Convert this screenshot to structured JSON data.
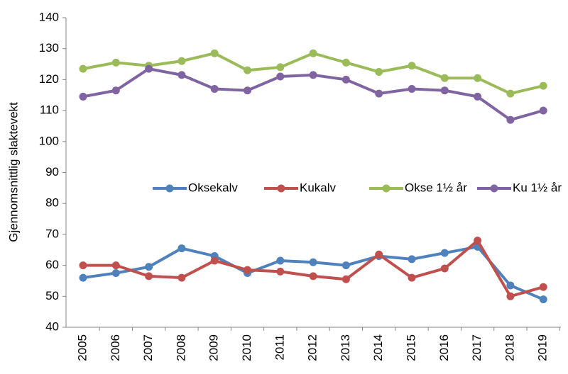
{
  "chart_data": {
    "type": "line",
    "y_label": "Gjennomsnittlig slaktevekt",
    "categories": [
      "2005",
      "2006",
      "2007",
      "2008",
      "2009",
      "2010",
      "2011",
      "2012",
      "2013",
      "2014",
      "2015",
      "2016",
      "2017",
      "2018",
      "2019"
    ],
    "series": [
      {
        "name": "Oksekalv",
        "color": "#4f81bd",
        "values": [
          56,
          57.5,
          59.5,
          65.5,
          63,
          57.5,
          61.5,
          61,
          60,
          63,
          62,
          64,
          66,
          53.5,
          49
        ]
      },
      {
        "name": "Kukalv",
        "color": "#c0504d",
        "values": [
          60,
          60,
          56.5,
          56,
          61.5,
          58.5,
          58,
          56.5,
          55.5,
          63.5,
          56,
          59,
          68,
          50,
          53
        ]
      },
      {
        "name": "Okse 1½ år",
        "color": "#9bbb59",
        "values": [
          123.5,
          125.5,
          124.5,
          126,
          128.5,
          123,
          124,
          128.5,
          125.5,
          122.5,
          124.5,
          120.5,
          120.5,
          115.5,
          118
        ]
      },
      {
        "name": "Ku 1½ år",
        "color": "#8064a2",
        "values": [
          114.5,
          116.5,
          123.5,
          121.5,
          117,
          116.5,
          121,
          121.5,
          120,
          115.5,
          117,
          116.5,
          114.5,
          107,
          110
        ]
      }
    ],
    "ylim": [
      40,
      140
    ],
    "yticks": [
      40,
      50,
      60,
      70,
      80,
      90,
      100,
      110,
      120,
      130,
      140
    ],
    "grid": false,
    "legend": "center"
  }
}
